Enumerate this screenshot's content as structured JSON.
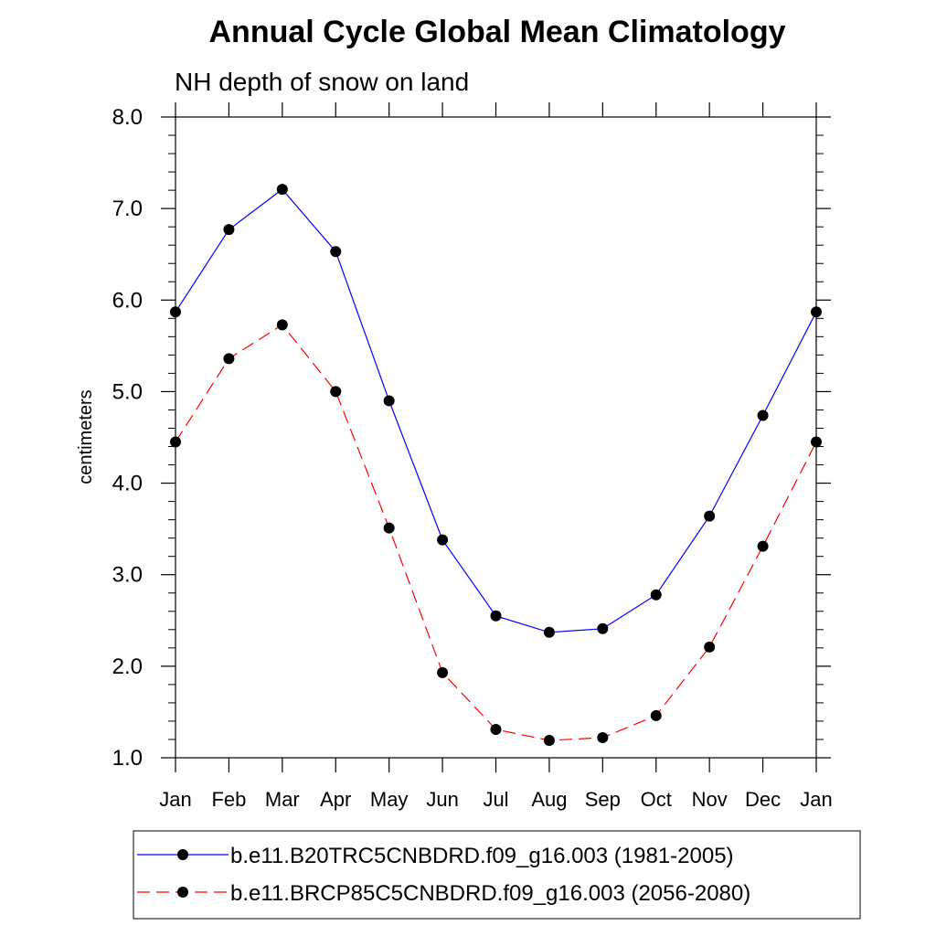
{
  "chart_data": {
    "type": "line",
    "title": "Annual Cycle Global Mean Climatology",
    "subtitle": "NH depth of snow on land",
    "xlabel": "",
    "ylabel": "centimeters",
    "ylim": [
      1.0,
      8.0
    ],
    "yticks": [
      "1.0",
      "2.0",
      "3.0",
      "4.0",
      "5.0",
      "6.0",
      "7.0",
      "8.0"
    ],
    "categories": [
      "Jan",
      "Feb",
      "Mar",
      "Apr",
      "May",
      "Jun",
      "Jul",
      "Aug",
      "Sep",
      "Oct",
      "Nov",
      "Dec",
      "Jan"
    ],
    "grid": false,
    "legend_position": "bottom",
    "series": [
      {
        "name": "b.e11.B20TRC5CNBDRD.f09_g16.003 (1981-2005)",
        "color": "#0000ff",
        "line_style": "solid",
        "marker": "circle",
        "values": [
          5.87,
          6.77,
          7.21,
          6.53,
          4.9,
          3.38,
          2.55,
          2.37,
          2.41,
          2.78,
          3.64,
          4.74,
          5.87
        ]
      },
      {
        "name": "b.e11.BRCP85C5CNBDRD.f09_g16.003 (2056-2080)",
        "color": "#ff0000",
        "line_style": "dashed",
        "marker": "circle",
        "values": [
          4.45,
          5.36,
          5.73,
          5.0,
          3.51,
          1.93,
          1.31,
          1.19,
          1.22,
          1.46,
          2.21,
          3.31,
          4.45
        ]
      }
    ]
  }
}
